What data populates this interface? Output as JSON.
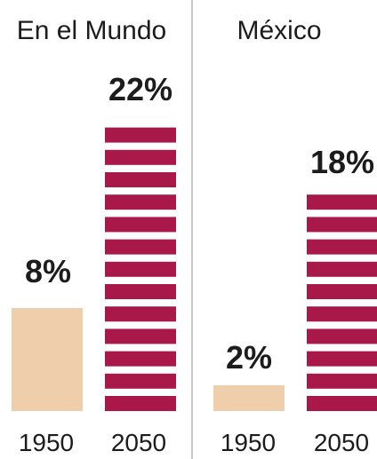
{
  "chart_data": [
    {
      "type": "bar",
      "title": "En el Mundo",
      "categories": [
        "1950",
        "2050"
      ],
      "values": [
        8,
        22
      ],
      "value_labels": [
        "8%",
        "22%"
      ],
      "ylim": [
        0,
        22
      ],
      "grid": false
    },
    {
      "type": "bar",
      "title": "México",
      "categories": [
        "1950",
        "2050"
      ],
      "values": [
        2,
        18
      ],
      "value_labels": [
        "2%",
        "18%"
      ],
      "ylim": [
        0,
        22
      ],
      "grid": false
    }
  ],
  "colors": {
    "bar_1950": "#efcfab",
    "bar_2050": "#a8194a",
    "divider": "#c8c8c8"
  }
}
